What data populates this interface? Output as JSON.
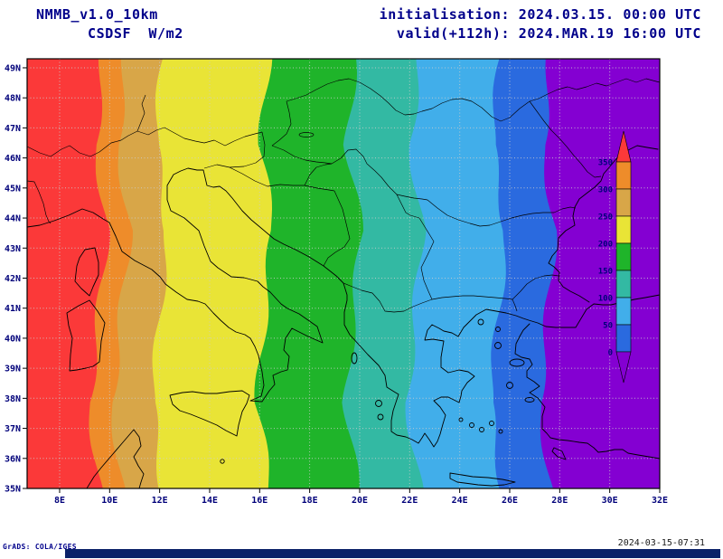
{
  "header": {
    "model": "NMMB_v1.0_10km",
    "variable": "CSDSF  W/m2",
    "init": "initialisation: 2024.03.15. 00:00 UTC",
    "valid": "valid(+112h): 2024.MAR.19 16:00 UTC"
  },
  "footer": {
    "credit": "GrADS: COLA/IGES",
    "timestamp": "2024-03-15-07:31"
  },
  "colors": {
    "header_text": "#00008b",
    "axis_text": "#00007a",
    "map_frame": "#000000",
    "bottom_bar": "#0b2168"
  },
  "chart_data": {
    "type": "heatmap",
    "title": "CSDSF W/m2",
    "model": "NMMB_v1.0_10km",
    "init_time": "2024.03.15. 00:00 UTC",
    "valid_time": "2024.MAR.19 16:00 UTC (+112h)",
    "units": "W/m2",
    "region": "Europe / Mediterranean",
    "lon_range": [
      6.7,
      32
    ],
    "lat_range": [
      35,
      49.3
    ],
    "lon_tick_values": [
      8,
      10,
      12,
      14,
      16,
      18,
      20,
      22,
      24,
      26,
      28,
      30,
      32
    ],
    "lon_tick_labels": [
      "8E",
      "10E",
      "12E",
      "14E",
      "16E",
      "18E",
      "20E",
      "22E",
      "24E",
      "26E",
      "28E",
      "30E",
      "32E"
    ],
    "lat_tick_values": [
      49,
      48,
      47,
      46,
      45,
      44,
      43,
      42,
      41,
      40,
      39,
      38,
      37,
      36,
      35
    ],
    "lat_tick_labels": [
      "49N",
      "48N",
      "47N",
      "46N",
      "45N",
      "44N",
      "43N",
      "42N",
      "41N",
      "40N",
      "39N",
      "38N",
      "37N",
      "36N",
      "35N"
    ],
    "grid": "dotted",
    "contour_interval": 50,
    "legend": {
      "position": "inside-right",
      "tick_values": [
        350,
        300,
        250,
        200,
        150,
        100,
        50,
        0
      ],
      "segments_top_to_bottom": [
        {
          "range": ">350",
          "color": "#fb3939",
          "shape": "arrow-up"
        },
        {
          "range": "300-350",
          "color": "#ee8c2a"
        },
        {
          "range": "250-300",
          "color": "#d8a648"
        },
        {
          "range": "200-250",
          "color": "#e9e436"
        },
        {
          "range": "150-200",
          "color": "#1fb42a"
        },
        {
          "range": "100-150",
          "color": "#33b9a3"
        },
        {
          "range": "50-100",
          "color": "#41aeea"
        },
        {
          "range": "0-50",
          "color": "#2a6adf"
        },
        {
          "range": "<0",
          "color": "#8400d2",
          "shape": "arrow-down"
        }
      ]
    },
    "bands_right_to_left": [
      {
        "value_range": "<0 background",
        "color": "#8400d2",
        "edge_lons": null
      },
      {
        "value_range": "0-50",
        "color": "#2a6adf",
        "edge_lons": [
          27.6,
          27.35,
          27.8,
          27.5,
          27.2,
          27.65
        ]
      },
      {
        "value_range": "50-100",
        "color": "#41aeea",
        "edge_lons": [
          25.6,
          25.3,
          25.85,
          25.55,
          25.2,
          25.7
        ]
      },
      {
        "value_range": "100-150",
        "color": "#33b9a3",
        "edge_lons": [
          22.35,
          22.05,
          22.5,
          22.2,
          21.9,
          22.4
        ]
      },
      {
        "value_range": "150-200",
        "color": "#1fb42a",
        "edge_lons": [
          19.8,
          19.5,
          20.05,
          19.75,
          19.45,
          19.9
        ]
      },
      {
        "value_range": "200-250",
        "color": "#e9e436",
        "edge_lons": [
          16.35,
          16.05,
          16.5,
          16.2,
          15.9,
          16.4
        ]
      },
      {
        "value_range": "250-300",
        "color": "#d8a648",
        "edge_lons": [
          12.1,
          11.85,
          12.3,
          12.0,
          11.7,
          12.1
        ]
      },
      {
        "value_range": "300-350",
        "color": "#ee8c2a",
        "edge_lons": [
          10.6,
          10.35,
          10.8,
          10.45,
          10.1,
          10.5
        ]
      },
      {
        "value_range": ">350",
        "color": "#fb3939",
        "edge_lons": [
          9.7,
          9.45,
          9.9,
          9.55,
          9.2,
          9.6
        ]
      }
    ]
  }
}
